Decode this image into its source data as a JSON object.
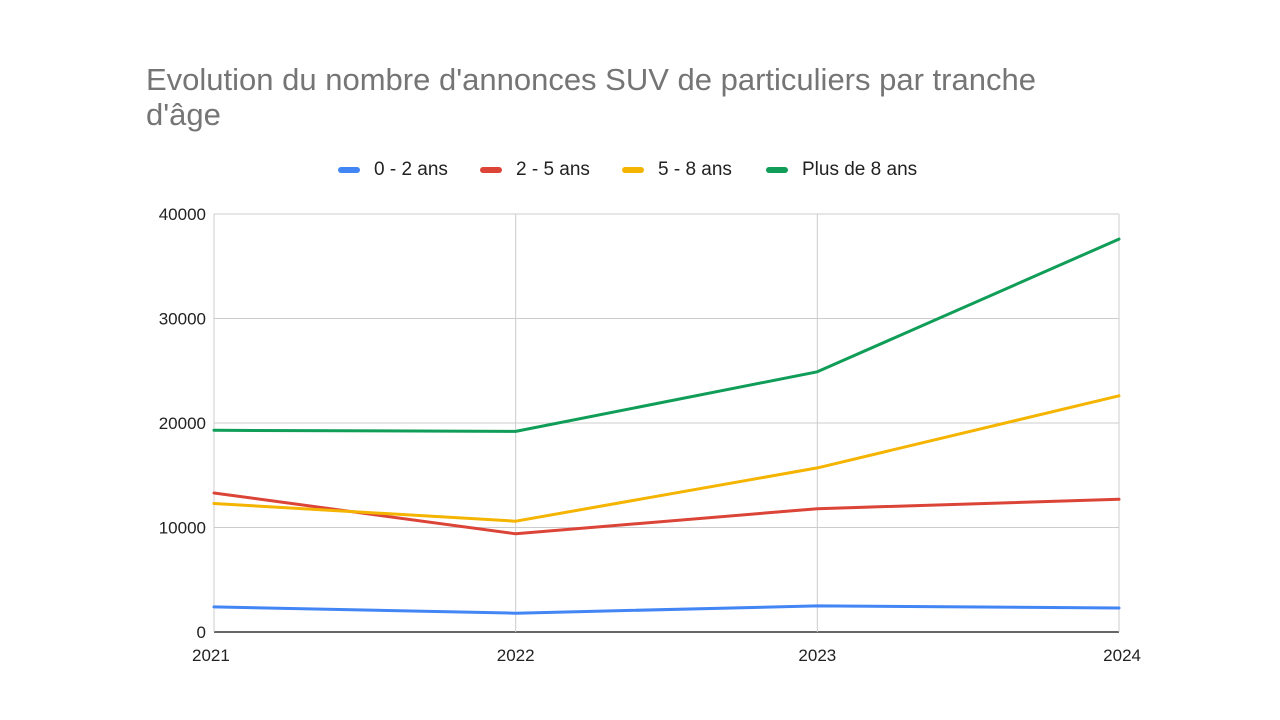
{
  "chart_data": {
    "type": "line",
    "title": "Evolution du nombre d'annonces SUV de particuliers par tranche d'âge",
    "x": [
      "2021",
      "2022",
      "2023",
      "2024"
    ],
    "ylim": [
      0,
      40000
    ],
    "yticks": [
      "0",
      "10000",
      "20000",
      "30000",
      "40000"
    ],
    "grid": true,
    "legend_position": "top",
    "series": [
      {
        "name": "0 - 2 ans",
        "color": "#4285f4",
        "values": [
          2400,
          1800,
          2500,
          2300
        ]
      },
      {
        "name": "2 - 5 ans",
        "color": "#db4437",
        "values": [
          13300,
          9400,
          11800,
          12700
        ]
      },
      {
        "name": "5 - 8 ans",
        "color": "#f4b400",
        "values": [
          12300,
          10600,
          15700,
          22600
        ]
      },
      {
        "name": "Plus de 8 ans",
        "color": "#0f9d58",
        "values": [
          19300,
          19200,
          24900,
          37600
        ]
      }
    ]
  }
}
